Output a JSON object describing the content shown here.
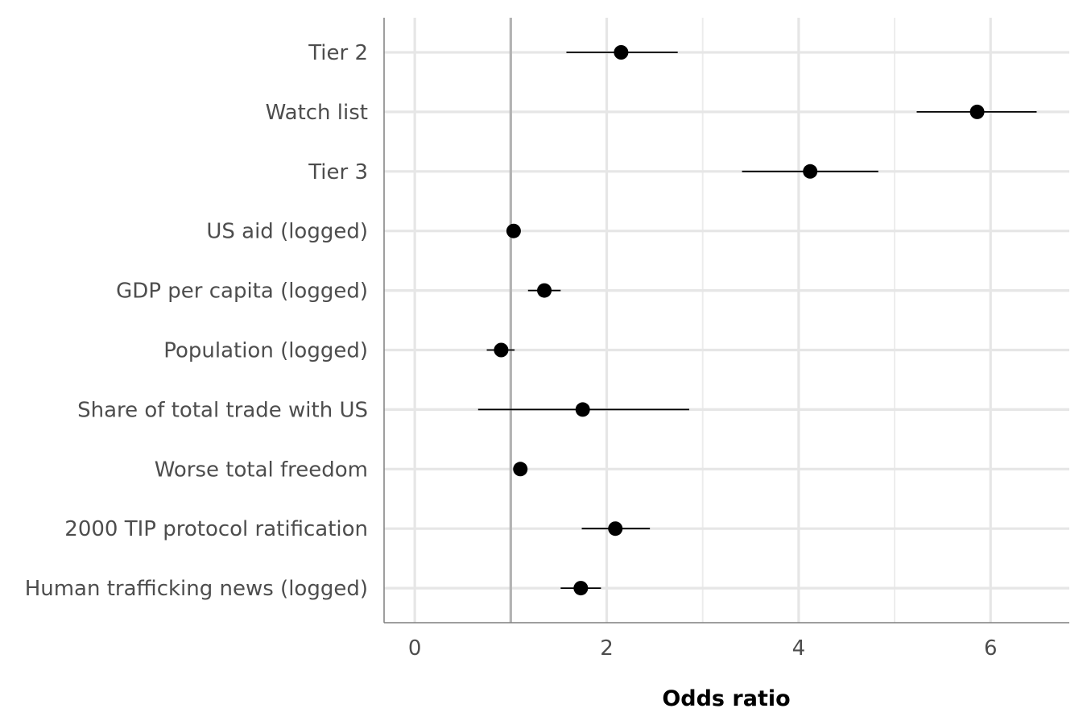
{
  "chart_data": {
    "type": "forest",
    "title": "",
    "xlabel": "Odds ratio",
    "ylabel": "",
    "xlim": [
      -0.32,
      6.82
    ],
    "x_ticks": [
      0,
      2,
      4,
      6
    ],
    "x_tick_labels": [
      "0",
      "2",
      "4",
      "6"
    ],
    "reference_line": 1,
    "grid": true,
    "legend": "none",
    "categories": [
      "Tier 2",
      "Watch list",
      "Tier 3",
      "US aid (logged)",
      "GDP per capita (logged)",
      "Population (logged)",
      "Share of total trade with US",
      "Worse total freedom",
      "2000 TIP protocol ratification",
      "Human trafficking news (logged)"
    ],
    "estimates": [
      2.15,
      5.86,
      4.12,
      1.03,
      1.35,
      0.9,
      1.75,
      1.1,
      2.09,
      1.73
    ],
    "ci_low": [
      1.58,
      5.23,
      3.41,
      0.99,
      1.18,
      0.75,
      0.66,
      1.05,
      1.74,
      1.52
    ],
    "ci_high": [
      2.74,
      6.48,
      4.83,
      1.07,
      1.52,
      1.04,
      2.86,
      1.15,
      2.45,
      1.94
    ],
    "colors": {
      "point": "#000000",
      "ci_line": "#000000",
      "reference_line": "#b3b3b3",
      "grid_major": "#e6e6e6",
      "grid_minor": "#ececec",
      "axis": "#7f7f7f",
      "label_text": "#4d4d4d"
    }
  }
}
